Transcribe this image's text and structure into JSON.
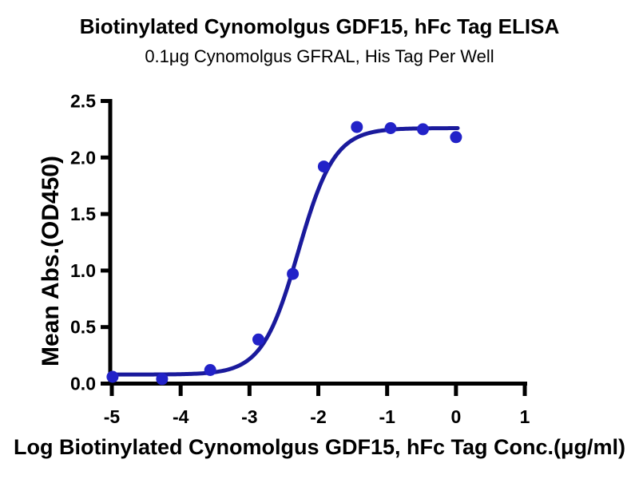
{
  "chart_data": {
    "type": "scatter",
    "fit_type": "sigmoidal-4PL-dose-response",
    "title": "Biotinylated Cynomolgus GDF15, hFc Tag ELISA",
    "subtitle": "0.1μg Cynomolgus GFRAL, His Tag Per Well",
    "xlabel": "Log Biotinylated Cynomolgus GDF15, hFc Tag Conc.(μg/ml)",
    "ylabel": "Mean Abs.(OD450)",
    "xlim": [
      -5,
      1
    ],
    "ylim": [
      0,
      2.5
    ],
    "x_tick_labels": [
      "-5",
      "-4",
      "-3",
      "-2",
      "-1",
      "0",
      "1"
    ],
    "y_tick_labels": [
      "0.0",
      "0.5",
      "1.0",
      "1.5",
      "2.0",
      "2.5"
    ],
    "grid": false,
    "legend": "none",
    "points": [
      {
        "x": -4.99,
        "y": 0.06
      },
      {
        "x": -4.27,
        "y": 0.04
      },
      {
        "x": -3.57,
        "y": 0.12
      },
      {
        "x": -2.87,
        "y": 0.39
      },
      {
        "x": -2.37,
        "y": 0.97
      },
      {
        "x": -1.92,
        "y": 1.92
      },
      {
        "x": -1.44,
        "y": 2.27
      },
      {
        "x": -0.95,
        "y": 2.26
      },
      {
        "x": -0.48,
        "y": 2.25
      },
      {
        "x": 0.0,
        "y": 2.18
      }
    ],
    "fit": {
      "bottom": 0.08,
      "top": 2.26,
      "log_ec50": -2.29,
      "hill_slope": 1.65,
      "x_start": -5.0,
      "x_end": 0.03
    },
    "colors": {
      "points": "#2222c8",
      "curve": "#1a1a9c",
      "axis": "#000000",
      "text": "#000000",
      "background": "#ffffff"
    }
  }
}
